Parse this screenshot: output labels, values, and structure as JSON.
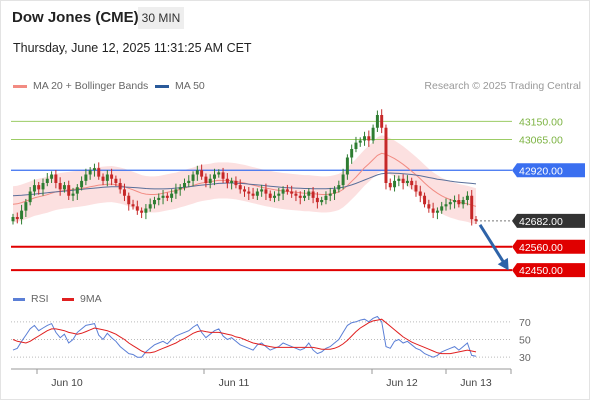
{
  "header": {
    "title": "Dow Jones (CME)",
    "timeframe": "30 MIN",
    "datetime": "Thursday, June 12, 2025 11:31:25 AM CET"
  },
  "credit": "Research © 2025 Trading Central",
  "legend_top": [
    {
      "label": "MA 20 + Bollinger Bands",
      "color": "#f28b82"
    },
    {
      "label": "MA 50",
      "color": "#2a5a9a"
    }
  ],
  "legend_bottom": [
    {
      "label": "RSI",
      "color": "#5b7fd6"
    },
    {
      "label": "9MA",
      "color": "#e02020"
    }
  ],
  "colors": {
    "up": "#2e7d32",
    "down": "#c62828",
    "support": "#e00000",
    "pivot": "#3a6ff0",
    "resistance": "#9ccc65",
    "arrow": "#2e63a8",
    "current": "#333333",
    "band": "#fbd5d5"
  },
  "chart_data": [
    {
      "type": "candlestick",
      "title": "Dow Jones (CME)",
      "ylim": [
        42380,
        43260
      ],
      "x_tick_labels": [
        "Jun 10",
        "Jun 11",
        "Jun 12",
        "Jun 13"
      ],
      "levels": [
        {
          "value": 43150.0,
          "label": "43150.00",
          "kind": "resistance"
        },
        {
          "value": 43065.0,
          "label": "43065.00",
          "kind": "resistance"
        },
        {
          "value": 42920.0,
          "label": "42920.00",
          "kind": "pivot"
        },
        {
          "value": 42682.0,
          "label": "42682.00",
          "kind": "current"
        },
        {
          "value": 42560.0,
          "label": "42560.00",
          "kind": "support"
        },
        {
          "value": 42450.0,
          "label": "42450.00",
          "kind": "support"
        }
      ],
      "close": [
        42700,
        42690,
        42730,
        42770,
        42820,
        42850,
        42830,
        42860,
        42880,
        42900,
        42860,
        42830,
        42850,
        42800,
        42810,
        42840,
        42870,
        42900,
        42920,
        42930,
        42890,
        42870,
        42900,
        42880,
        42860,
        42830,
        42800,
        42760,
        42750,
        42730,
        42720,
        42740,
        42760,
        42780,
        42790,
        42800,
        42790,
        42810,
        42830,
        42840,
        42860,
        42870,
        42900,
        42920,
        42890,
        42860,
        42880,
        42900,
        42910,
        42880,
        42860,
        42870,
        42850,
        42830,
        42820,
        42810,
        42800,
        42820,
        42830,
        42810,
        42790,
        42800,
        42810,
        42830,
        42820,
        42810,
        42800,
        42790,
        42800,
        42820,
        42790,
        42770,
        42780,
        42800,
        42810,
        42830,
        42850,
        42900,
        42980,
        43020,
        43050,
        43060,
        43080,
        43060,
        43120,
        43180,
        43120,
        42860,
        42840,
        42870,
        42880,
        42860,
        42870,
        42850,
        42820,
        42800,
        42760,
        42740,
        42720,
        42730,
        42750,
        42760,
        42770,
        42780,
        42760,
        42780,
        42800,
        42690,
        42682
      ],
      "ma20": [
        42760,
        42762,
        42768,
        42775,
        42782,
        42790,
        42795,
        42800,
        42805,
        42812,
        42818,
        42822,
        42825,
        42827,
        42830,
        42832,
        42835,
        42838,
        42842,
        42846,
        42850,
        42852,
        42854,
        42855,
        42852,
        42848,
        42843,
        42835,
        42828,
        42820,
        42812,
        42808,
        42806,
        42806,
        42808,
        42812,
        42816,
        42820,
        42824,
        42830,
        42836,
        42842,
        42848,
        42855,
        42860,
        42863,
        42866,
        42870,
        42872,
        42872,
        42872,
        42870,
        42868,
        42864,
        42860,
        42855,
        42850,
        42845,
        42840,
        42836,
        42832,
        42828,
        42825,
        42822,
        42820,
        42818,
        42816,
        42814,
        42812,
        42812,
        42810,
        42808,
        42806,
        42806,
        42808,
        42812,
        42818,
        42830,
        42848,
        42868,
        42888,
        42910,
        42932,
        42950,
        42970,
        42990,
        43000,
        42995,
        42985,
        42975,
        42962,
        42948,
        42932,
        42915,
        42898,
        42880,
        42860,
        42842,
        42826,
        42812,
        42800,
        42790,
        42782,
        42776,
        42770,
        42766,
        42762,
        42756,
        42750
      ],
      "ma50": [
        42800,
        42801,
        42802,
        42804,
        42806,
        42808,
        42810,
        42812,
        42814,
        42816,
        42818,
        42820,
        42822,
        42824,
        42826,
        42828,
        42830,
        42832,
        42834,
        42836,
        42838,
        42840,
        42841,
        42842,
        42842,
        42842,
        42841,
        42840,
        42839,
        42838,
        42836,
        42834,
        42833,
        42832,
        42832,
        42832,
        42833,
        42834,
        42836,
        42838,
        42840,
        42842,
        42845,
        42848,
        42850,
        42852,
        42854,
        42856,
        42858,
        42859,
        42860,
        42860,
        42859,
        42858,
        42857,
        42855,
        42853,
        42851,
        42849,
        42847,
        42845,
        42843,
        42841,
        42839,
        42838,
        42837,
        42836,
        42835,
        42834,
        42834,
        42833,
        42833,
        42833,
        42833,
        42834,
        42835,
        42837,
        42840,
        42845,
        42851,
        42858,
        42866,
        42874,
        42882,
        42890,
        42898,
        42904,
        42906,
        42907,
        42906,
        42905,
        42904,
        42902,
        42900,
        42897,
        42894,
        42890,
        42886,
        42882,
        42878,
        42875,
        42872,
        42869,
        42866,
        42864,
        42862,
        42860,
        42858,
        42856
      ]
    },
    {
      "type": "line",
      "title": "RSI",
      "ylim": [
        20,
        80
      ],
      "y_tick_labels": [
        "70",
        "50",
        "30"
      ],
      "series": [
        {
          "name": "RSI",
          "values": [
            38,
            40,
            48,
            55,
            62,
            66,
            60,
            63,
            66,
            68,
            58,
            52,
            56,
            46,
            50,
            58,
            62,
            66,
            67,
            68,
            55,
            50,
            57,
            52,
            48,
            42,
            38,
            34,
            33,
            30,
            30,
            36,
            40,
            44,
            46,
            48,
            45,
            50,
            54,
            56,
            58,
            60,
            64,
            67,
            58,
            52,
            56,
            60,
            62,
            54,
            50,
            52,
            48,
            44,
            42,
            40,
            38,
            44,
            46,
            42,
            38,
            40,
            42,
            46,
            44,
            42,
            40,
            38,
            40,
            46,
            38,
            34,
            36,
            40,
            42,
            46,
            50,
            58,
            66,
            69,
            70,
            72,
            73,
            70,
            74,
            76,
            70,
            42,
            40,
            48,
            50,
            46,
            48,
            44,
            40,
            38,
            34,
            32,
            30,
            32,
            36,
            38,
            40,
            42,
            38,
            42,
            46,
            32,
            31
          ]
        },
        {
          "name": "9MA",
          "values": [
            50,
            48,
            47,
            46,
            48,
            51,
            54,
            57,
            60,
            62,
            62,
            61,
            60,
            58,
            57,
            56,
            57,
            59,
            61,
            63,
            62,
            61,
            60,
            58,
            56,
            53,
            50,
            46,
            43,
            40,
            37,
            35,
            35,
            36,
            38,
            40,
            42,
            44,
            46,
            49,
            51,
            54,
            57,
            59,
            60,
            59,
            58,
            58,
            58,
            57,
            56,
            55,
            53,
            52,
            50,
            48,
            46,
            45,
            44,
            43,
            42,
            41,
            41,
            41,
            41,
            41,
            41,
            41,
            41,
            41,
            41,
            40,
            39,
            39,
            39,
            40,
            42,
            45,
            49,
            54,
            59,
            63,
            66,
            69,
            71,
            72,
            73,
            69,
            65,
            61,
            57,
            53,
            50,
            47,
            45,
            43,
            41,
            39,
            37,
            35,
            34,
            34,
            34,
            35,
            36,
            37,
            38,
            37,
            36
          ]
        }
      ]
    }
  ]
}
